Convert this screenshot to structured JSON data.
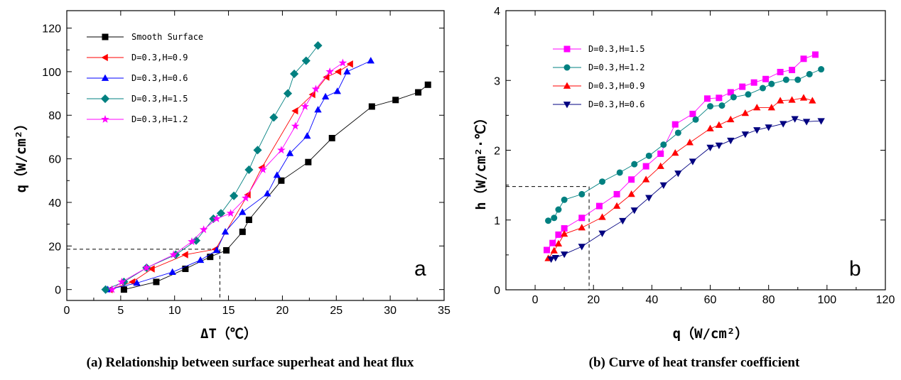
{
  "chart_data": [
    {
      "type": "line",
      "panel_label": "a",
      "caption": "(a) Relationship between surface superheat and heat flux",
      "xlabel": "ΔT（℃）",
      "ylabel": "q（W/cm²）",
      "xlim": [
        0,
        35
      ],
      "ylim": [
        -5,
        128
      ],
      "xticks": [
        0,
        5,
        10,
        15,
        20,
        25,
        30,
        35
      ],
      "yticks": [
        0,
        20,
        40,
        60,
        80,
        100,
        120
      ],
      "legend_position": "top-left",
      "reference_point": [
        14.2,
        18.5
      ],
      "series": [
        {
          "name": "Smooth Surface",
          "marker": "square",
          "color": "#000000",
          "x": [
            5.3,
            8.3,
            11.0,
            13.3,
            14.8,
            16.3,
            16.9,
            19.9,
            22.4,
            24.6,
            28.3,
            30.5,
            32.6,
            33.5
          ],
          "y": [
            0,
            3.5,
            9.5,
            15.0,
            18.0,
            26.5,
            32.0,
            50.0,
            58.5,
            69.5,
            84.0,
            87.0,
            90.5,
            94.0
          ]
        },
        {
          "name": "D=0.3,H=0.9",
          "marker": "triangle-left",
          "color": "#ff0000",
          "x": [
            4.0,
            6.1,
            7.9,
            11.0,
            13.8,
            16.8,
            18.1,
            21.2,
            22.8,
            24.1,
            25.2,
            26.3
          ],
          "y": [
            0,
            3.5,
            9.5,
            16.0,
            18.5,
            43.5,
            56.0,
            82.0,
            89.5,
            97.5,
            100.0,
            103.5
          ]
        },
        {
          "name": "D=0.3,H=0.6",
          "marker": "triangle-up",
          "color": "#0000ff",
          "x": [
            3.8,
            6.5,
            9.8,
            12.4,
            13.9,
            14.7,
            16.3,
            18.6,
            19.5,
            20.7,
            22.3,
            23.3,
            24.0,
            25.1,
            26.0,
            28.2
          ],
          "y": [
            0,
            3.0,
            8.0,
            13.5,
            18.0,
            26.5,
            35.5,
            44.0,
            52.5,
            62.5,
            70.5,
            82.5,
            88.5,
            91.0,
            100.0,
            105.0
          ]
        },
        {
          "name": "D=0.3,H=1.5",
          "marker": "diamond",
          "color": "#008080",
          "x": [
            3.6,
            5.3,
            7.4,
            10.1,
            12.0,
            13.6,
            14.3,
            15.5,
            16.9,
            17.7,
            19.2,
            20.5,
            21.1,
            22.2,
            23.3
          ],
          "y": [
            0,
            3.5,
            10.0,
            16.0,
            22.5,
            32.5,
            35.0,
            43.0,
            55.0,
            64.0,
            79.0,
            90.0,
            99.0,
            105.0,
            112.0
          ]
        },
        {
          "name": "D=0.3,H=1.2",
          "marker": "star",
          "color": "#ff00ff",
          "x": [
            4.2,
            5.1,
            7.4,
            9.9,
            11.6,
            12.7,
            13.9,
            15.2,
            16.6,
            18.2,
            19.9,
            21.2,
            22.1,
            23.1,
            24.4,
            25.6
          ],
          "y": [
            0,
            3.5,
            10.0,
            16.0,
            22.0,
            27.5,
            32.5,
            35.0,
            42.0,
            55.0,
            64.0,
            75.0,
            84.0,
            92.0,
            100.0,
            104.0
          ]
        }
      ]
    },
    {
      "type": "line",
      "panel_label": "b",
      "caption": "(b) Curve of heat transfer coefficient",
      "xlabel": "q（W/cm²）",
      "ylabel": "h（W/cm²·℃）",
      "xlim": [
        -10,
        120
      ],
      "ylim": [
        0,
        4
      ],
      "xticks": [
        0,
        20,
        40,
        60,
        80,
        100,
        120
      ],
      "yticks": [
        0,
        1,
        2,
        3,
        4
      ],
      "legend_position": "top-left",
      "reference_point": [
        18.5,
        1.48
      ],
      "series": [
        {
          "name": "D=0.3,H=1.5",
          "marker": "square",
          "color": "#ff00ff",
          "x": [
            4,
            6,
            8,
            10,
            16,
            22,
            28,
            33,
            38,
            43,
            48,
            54,
            59,
            63,
            67,
            71,
            75,
            79,
            84,
            88,
            92,
            96
          ],
          "y": [
            0.57,
            0.67,
            0.79,
            0.88,
            1.03,
            1.2,
            1.37,
            1.58,
            1.77,
            1.95,
            2.37,
            2.52,
            2.74,
            2.75,
            2.83,
            2.91,
            2.97,
            3.02,
            3.12,
            3.15,
            3.31,
            3.37
          ]
        },
        {
          "name": "D=0.3,H=1.2",
          "marker": "circle",
          "color": "#008080",
          "x": [
            4.5,
            6.5,
            8,
            10,
            16,
            23,
            29,
            34,
            39,
            44,
            49,
            55,
            60,
            64,
            68,
            73,
            78,
            81,
            86,
            90,
            94,
            98
          ],
          "y": [
            0.99,
            1.03,
            1.15,
            1.29,
            1.37,
            1.55,
            1.68,
            1.8,
            1.92,
            2.08,
            2.25,
            2.44,
            2.63,
            2.64,
            2.76,
            2.8,
            2.89,
            2.95,
            3.01,
            3.01,
            3.09,
            3.16
          ]
        },
        {
          "name": "D=0.3,H=0.9",
          "marker": "triangle-up",
          "color": "#ff0000",
          "x": [
            4.5,
            6.5,
            8,
            10,
            16,
            23,
            28,
            33,
            38,
            43,
            48,
            53,
            60,
            63,
            67,
            72,
            76,
            81,
            84,
            88,
            92,
            95
          ],
          "y": [
            0.45,
            0.56,
            0.66,
            0.8,
            0.89,
            1.04,
            1.2,
            1.37,
            1.58,
            1.77,
            1.96,
            2.11,
            2.31,
            2.36,
            2.44,
            2.53,
            2.61,
            2.61,
            2.71,
            2.72,
            2.75,
            2.71
          ]
        },
        {
          "name": "D=0.3,H=0.6",
          "marker": "triangle-down",
          "color": "#000080",
          "x": [
            5.5,
            7,
            10,
            16,
            23,
            30,
            34,
            39,
            44,
            49,
            54,
            60,
            63,
            67,
            72,
            76,
            80,
            85,
            89,
            93,
            98
          ],
          "y": [
            0.44,
            0.46,
            0.51,
            0.62,
            0.81,
            0.99,
            1.14,
            1.32,
            1.5,
            1.67,
            1.84,
            2.04,
            2.07,
            2.14,
            2.23,
            2.29,
            2.33,
            2.38,
            2.45,
            2.41,
            2.42
          ]
        }
      ]
    }
  ]
}
